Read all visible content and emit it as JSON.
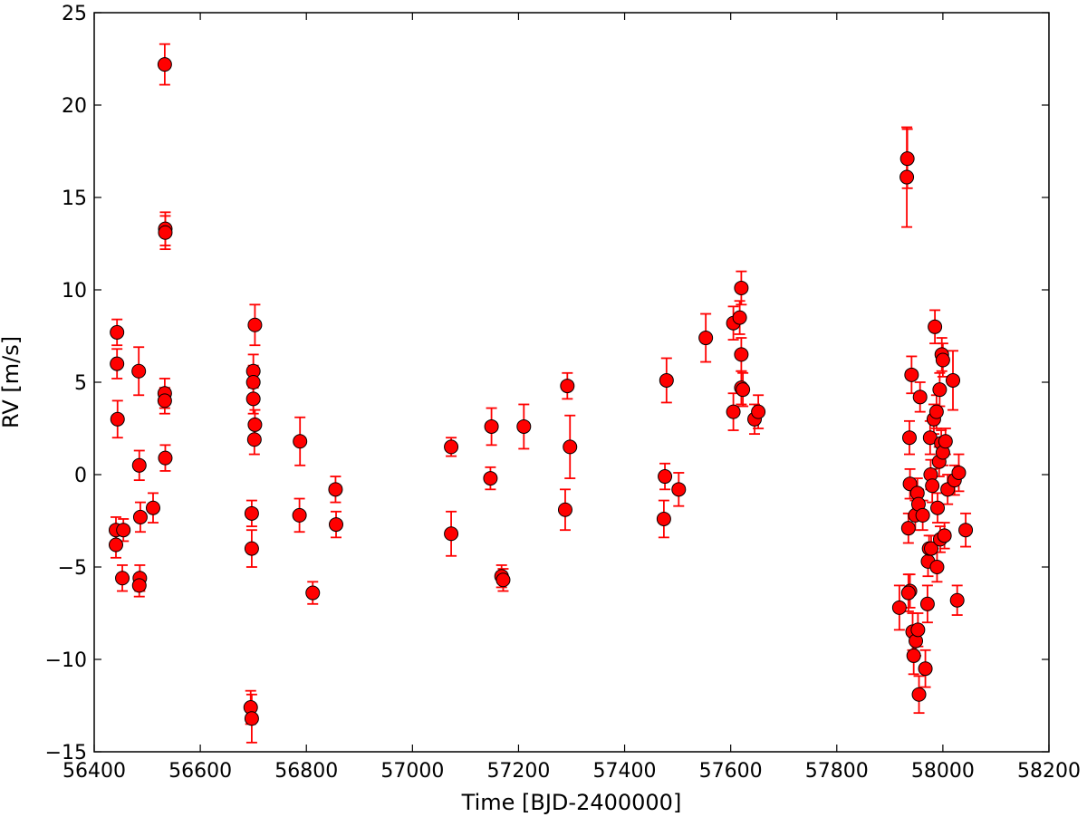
{
  "chart_data": {
    "type": "scatter",
    "title": "",
    "xlabel": "Time [BJD-2400000]",
    "ylabel": "RV [m/s]",
    "xlim": [
      56400,
      58200
    ],
    "ylim": [
      -15,
      25
    ],
    "xticks": [
      56400,
      56600,
      56800,
      57000,
      57200,
      57400,
      57600,
      57800,
      58000,
      58200
    ],
    "yticks": [
      -15,
      -10,
      -5,
      0,
      5,
      10,
      15,
      20,
      25
    ],
    "grid": false,
    "marker_color": "#ff0000",
    "errorbar_color": "#ff0000",
    "points": [
      {
        "x": 56443,
        "y": 7.7,
        "err": 0.7
      },
      {
        "x": 56443,
        "y": 6.0,
        "err": 0.8
      },
      {
        "x": 56444,
        "y": 3.0,
        "err": 1.0
      },
      {
        "x": 56441,
        "y": -3.0,
        "err": 0.7
      },
      {
        "x": 56441,
        "y": -3.8,
        "err": 0.7
      },
      {
        "x": 56455,
        "y": -3.0,
        "err": 0.6
      },
      {
        "x": 56453,
        "y": -5.6,
        "err": 0.7
      },
      {
        "x": 56484,
        "y": 5.6,
        "err": 1.3
      },
      {
        "x": 56485,
        "y": 0.5,
        "err": 0.8
      },
      {
        "x": 56487,
        "y": -2.3,
        "err": 0.8
      },
      {
        "x": 56486,
        "y": -5.6,
        "err": 0.7
      },
      {
        "x": 56485,
        "y": -6.0,
        "err": 0.6
      },
      {
        "x": 56511,
        "y": -1.8,
        "err": 0.8
      },
      {
        "x": 56533,
        "y": 22.2,
        "err": 1.1
      },
      {
        "x": 56534,
        "y": 13.3,
        "err": 0.9
      },
      {
        "x": 56534,
        "y": 13.1,
        "err": 0.9
      },
      {
        "x": 56533,
        "y": 4.4,
        "err": 0.8
      },
      {
        "x": 56533,
        "y": 4.0,
        "err": 0.7
      },
      {
        "x": 56534,
        "y": 0.9,
        "err": 0.7
      },
      {
        "x": 56703,
        "y": 8.1,
        "err": 1.1
      },
      {
        "x": 56700,
        "y": 5.6,
        "err": 0.9
      },
      {
        "x": 56700,
        "y": 5.0,
        "err": 0.9
      },
      {
        "x": 56700,
        "y": 4.1,
        "err": 0.8
      },
      {
        "x": 56703,
        "y": 2.7,
        "err": 0.8
      },
      {
        "x": 56702,
        "y": 1.9,
        "err": 0.8
      },
      {
        "x": 56697,
        "y": -2.1,
        "err": 0.7
      },
      {
        "x": 56697,
        "y": -4.0,
        "err": 1.0
      },
      {
        "x": 56695,
        "y": -12.6,
        "err": 0.9
      },
      {
        "x": 56697,
        "y": -13.2,
        "err": 1.3
      },
      {
        "x": 56788,
        "y": 1.8,
        "err": 1.3
      },
      {
        "x": 56787,
        "y": -2.2,
        "err": 0.9
      },
      {
        "x": 56812,
        "y": -6.4,
        "err": 0.6
      },
      {
        "x": 56855,
        "y": -0.8,
        "err": 0.7
      },
      {
        "x": 56856,
        "y": -2.7,
        "err": 0.7
      },
      {
        "x": 57073,
        "y": 1.5,
        "err": 0.5
      },
      {
        "x": 57073,
        "y": -3.2,
        "err": 1.2
      },
      {
        "x": 57149,
        "y": 2.6,
        "err": 1.0
      },
      {
        "x": 57147,
        "y": -0.2,
        "err": 0.6
      },
      {
        "x": 57168,
        "y": -5.5,
        "err": 0.6
      },
      {
        "x": 57171,
        "y": -5.7,
        "err": 0.6
      },
      {
        "x": 57210,
        "y": 2.6,
        "err": 1.2
      },
      {
        "x": 57292,
        "y": 4.8,
        "err": 0.7
      },
      {
        "x": 57297,
        "y": 1.5,
        "err": 1.7
      },
      {
        "x": 57288,
        "y": -1.9,
        "err": 1.1
      },
      {
        "x": 57479,
        "y": 5.1,
        "err": 1.2
      },
      {
        "x": 57476,
        "y": -0.1,
        "err": 0.7
      },
      {
        "x": 57474,
        "y": -2.4,
        "err": 1.0
      },
      {
        "x": 57502,
        "y": -0.8,
        "err": 0.9
      },
      {
        "x": 57553,
        "y": 7.4,
        "err": 1.3
      },
      {
        "x": 57605,
        "y": 8.2,
        "err": 0.9
      },
      {
        "x": 57605,
        "y": 3.4,
        "err": 1.0
      },
      {
        "x": 57620,
        "y": 10.1,
        "err": 0.9
      },
      {
        "x": 57617,
        "y": 8.5,
        "err": 0.9
      },
      {
        "x": 57620,
        "y": 6.5,
        "err": 0.9
      },
      {
        "x": 57620,
        "y": 4.7,
        "err": 0.9
      },
      {
        "x": 57623,
        "y": 4.6,
        "err": 0.9
      },
      {
        "x": 57645,
        "y": 3.0,
        "err": 0.8
      },
      {
        "x": 57652,
        "y": 3.4,
        "err": 0.9
      },
      {
        "x": 57933,
        "y": 17.1,
        "err": 1.6
      },
      {
        "x": 57932,
        "y": 16.1,
        "err": 2.7
      },
      {
        "x": 57941,
        "y": 5.4,
        "err": 1.0
      },
      {
        "x": 57937,
        "y": 2.0,
        "err": 0.9
      },
      {
        "x": 57938,
        "y": -0.5,
        "err": 0.8
      },
      {
        "x": 57935,
        "y": -2.9,
        "err": 0.8
      },
      {
        "x": 57938,
        "y": -6.3,
        "err": 0.9
      },
      {
        "x": 57935,
        "y": -6.4,
        "err": 1.0
      },
      {
        "x": 57918,
        "y": -7.2,
        "err": 1.2
      },
      {
        "x": 57943,
        "y": -8.5,
        "err": 1.0
      },
      {
        "x": 57945,
        "y": -9.8,
        "err": 1.0
      },
      {
        "x": 57949,
        "y": -9.0,
        "err": 0.8
      },
      {
        "x": 57953,
        "y": -8.4,
        "err": 0.9
      },
      {
        "x": 57948,
        "y": -2.2,
        "err": 0.8
      },
      {
        "x": 57952,
        "y": -1.0,
        "err": 0.8
      },
      {
        "x": 57954,
        "y": -1.6,
        "err": 0.8
      },
      {
        "x": 57957,
        "y": 4.2,
        "err": 0.8
      },
      {
        "x": 57962,
        "y": -2.2,
        "err": 0.8
      },
      {
        "x": 57955,
        "y": -11.9,
        "err": 1.0
      },
      {
        "x": 57967,
        "y": -10.5,
        "err": 1.0
      },
      {
        "x": 57971,
        "y": -7.0,
        "err": 1.0
      },
      {
        "x": 57972,
        "y": -4.7,
        "err": 0.8
      },
      {
        "x": 57974,
        "y": -4.0,
        "err": 0.7
      },
      {
        "x": 57978,
        "y": -4.0,
        "err": 0.7
      },
      {
        "x": 57976,
        "y": 2.0,
        "err": 0.9
      },
      {
        "x": 57977,
        "y": 0.0,
        "err": 0.8
      },
      {
        "x": 57980,
        "y": -0.6,
        "err": 0.9
      },
      {
        "x": 57983,
        "y": 3.0,
        "err": 0.8
      },
      {
        "x": 57985,
        "y": 8.0,
        "err": 0.9
      },
      {
        "x": 57988,
        "y": 3.4,
        "err": 0.9
      },
      {
        "x": 57989,
        "y": -5.0,
        "err": 0.8
      },
      {
        "x": 57990,
        "y": -1.8,
        "err": 0.8
      },
      {
        "x": 57993,
        "y": 0.7,
        "err": 0.8
      },
      {
        "x": 57994,
        "y": 4.6,
        "err": 0.9
      },
      {
        "x": 57995,
        "y": -3.5,
        "err": 0.7
      },
      {
        "x": 57997,
        "y": 1.7,
        "err": 0.7
      },
      {
        "x": 57998,
        "y": 6.5,
        "err": 0.9
      },
      {
        "x": 58000,
        "y": 6.2,
        "err": 0.9
      },
      {
        "x": 58000,
        "y": 1.2,
        "err": 0.7
      },
      {
        "x": 58003,
        "y": -3.3,
        "err": 0.7
      },
      {
        "x": 58005,
        "y": 1.8,
        "err": 0.7
      },
      {
        "x": 58009,
        "y": -0.8,
        "err": 0.8
      },
      {
        "x": 58019,
        "y": 5.1,
        "err": 1.6
      },
      {
        "x": 58022,
        "y": -0.3,
        "err": 0.8
      },
      {
        "x": 58027,
        "y": -6.8,
        "err": 0.8
      },
      {
        "x": 58030,
        "y": 0.1,
        "err": 1.0
      },
      {
        "x": 58043,
        "y": -3.0,
        "err": 0.9
      }
    ]
  }
}
